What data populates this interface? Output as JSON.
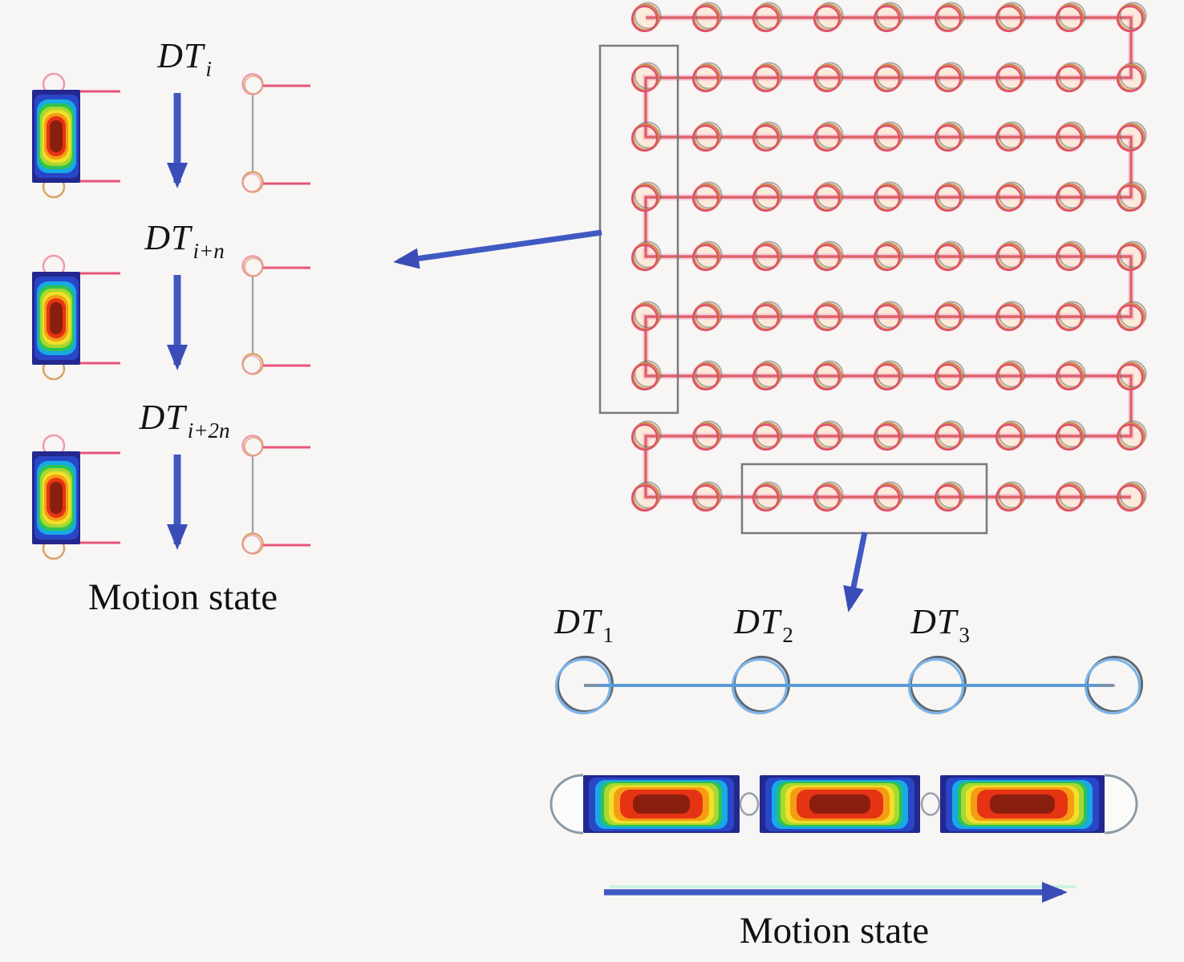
{
  "figure": {
    "type": "diagram",
    "description": "Serpentine scan path of detection targets with motion-state zoom-ins"
  },
  "left_panel": {
    "states": [
      {
        "label_main": "DT",
        "label_sub": "i"
      },
      {
        "label_main": "DT",
        "label_sub": "i+n"
      },
      {
        "label_main": "DT",
        "label_sub": "i+2n"
      }
    ],
    "caption": "Motion state"
  },
  "grid": {
    "rows": 9,
    "cols": 9,
    "path_style": "boustrophedon"
  },
  "bottom_panel": {
    "labels": [
      {
        "label_main": "DT",
        "label_sub": "1"
      },
      {
        "label_main": "DT",
        "label_sub": "2"
      },
      {
        "label_main": "DT",
        "label_sub": "3"
      }
    ],
    "caption": "Motion state"
  },
  "colors": {
    "background": "#f7f6f4",
    "path_pink": "#e3446e",
    "path_glow": "#f6bdd1",
    "node_tan": "#cd8a4c",
    "node_gray": "#6e6e6e",
    "node_fill": "#fcecd8",
    "halo_pink": "#fbd4e2",
    "red_line": "#e8557a",
    "pink_ring": "#ef9ab0",
    "tan_ring": "#d8a468",
    "arrow_blue": "#4059c2",
    "arrow_head": "#3a4cb8",
    "mint_edge": "#c6f3dc",
    "bottom_line_blue": "#5b9bd5",
    "circle_blue": "#7db3e8",
    "circle_gray": "#5d6670",
    "box_gray": "#7a7a7a",
    "capsule_gray": "#8a9aa8",
    "heat_layers": [
      "#23278e",
      "#2946c8",
      "#17aae4",
      "#2fc352",
      "#a8d832",
      "#f0e02a",
      "#f59c14",
      "#e63314",
      "#8a1f10"
    ]
  }
}
